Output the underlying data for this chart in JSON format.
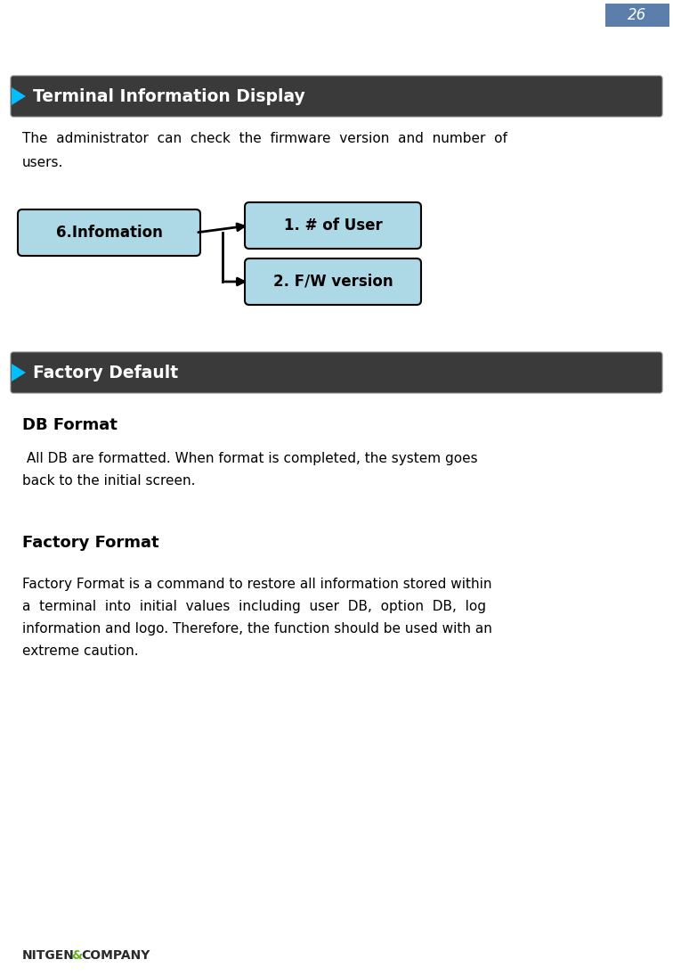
{
  "page_number": "26",
  "page_num_bg": "#5b7faa",
  "page_num_color": "#ffffff",
  "bg_color": "#ffffff",
  "section1_title": "Terminal Information Display",
  "section1_bg": "#3a3a3a",
  "section1_text_color": "#ffffff",
  "section1_arrow_color": "#00bfff",
  "section2_title": "Factory Default",
  "section2_bg": "#3a3a3a",
  "section2_text_color": "#ffffff",
  "section2_arrow_color": "#00bfff",
  "body_text1_line1": "The  administrator  can  check  the  firmware  version  and  number  of",
  "body_text1_line2": "users.",
  "db_format_title": "DB Format",
  "db_format_body_line1": " All DB are formatted. When format is completed, the system goes",
  "db_format_body_line2": "back to the initial screen.",
  "factory_format_title": "Factory Format",
  "factory_format_body_line1": "Factory Format is a command to restore all information stored within",
  "factory_format_body_line2": "a  terminal  into  initial  values  including  user  DB,  option  DB,  log",
  "factory_format_body_line3": "information and logo. Therefore, the function should be used with an",
  "factory_format_body_line4": "extreme caution.",
  "box_bg": "#add8e6",
  "box_border": "#000000",
  "box1_label": "6.Infomation",
  "box2_label": "1. # of User",
  "box3_label": "2. F/W version",
  "logo_nitgen": "NITGEN",
  "logo_amp": "&",
  "logo_company": "COMPANY",
  "logo_dark": "#2a2a2a",
  "logo_green": "#6ab023",
  "arrow_color": "#000000",
  "bar_edge_color": "#888888"
}
